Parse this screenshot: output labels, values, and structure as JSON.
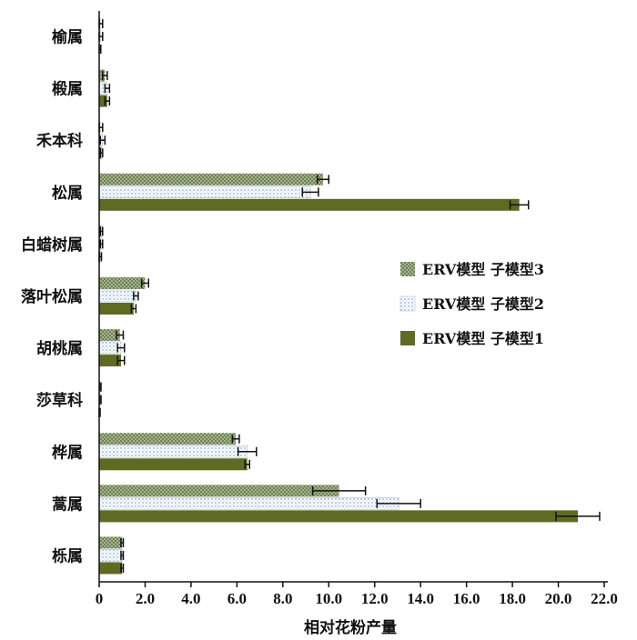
{
  "chart_data": {
    "type": "bar",
    "orientation": "horizontal",
    "xlabel": "相对花粉产量",
    "xlim": [
      0,
      22.0
    ],
    "xticks": [
      "0",
      "2.0",
      "4.0",
      "6.0",
      "8.0",
      "10.0",
      "12.0",
      "14.0",
      "16.0",
      "18.0",
      "20.0",
      "22.0"
    ],
    "categories": [
      "榆属",
      "椴属",
      "禾本科",
      "松属",
      "白蜡树属",
      "落叶松属",
      "胡桃属",
      "莎草科",
      "桦属",
      "蒿属",
      "栎属"
    ],
    "series": [
      {
        "name": "ERV模型 子模型3",
        "color": "#8c9c70",
        "pattern": "checker",
        "values": [
          0.05,
          0.25,
          0.05,
          9.75,
          0.1,
          2.0,
          0.9,
          0.05,
          5.95,
          10.45,
          1.0
        ],
        "errors": [
          0.1,
          0.1,
          0.1,
          0.25,
          0.05,
          0.15,
          0.15,
          0.03,
          0.15,
          1.15,
          0.05
        ]
      },
      {
        "name": "ERV模型 子模型2",
        "color": "#dde7f2",
        "pattern": "dots",
        "values": [
          0.05,
          0.35,
          0.15,
          9.2,
          0.1,
          1.6,
          0.95,
          0.05,
          6.45,
          13.05,
          1.0
        ],
        "errors": [
          0.1,
          0.1,
          0.1,
          0.35,
          0.05,
          0.1,
          0.15,
          0.03,
          0.4,
          0.95,
          0.05
        ]
      },
      {
        "name": "ERV模型 子模型1",
        "color": "#5f6b23",
        "pattern": "solid",
        "values": [
          0.02,
          0.35,
          0.1,
          18.3,
          0.05,
          1.5,
          0.95,
          0.02,
          6.45,
          20.85,
          1.0
        ],
        "errors": [
          0.05,
          0.1,
          0.05,
          0.4,
          0.05,
          0.1,
          0.15,
          0.02,
          0.1,
          0.95,
          0.05
        ]
      }
    ],
    "legend": "right-middle",
    "grid": false
  }
}
